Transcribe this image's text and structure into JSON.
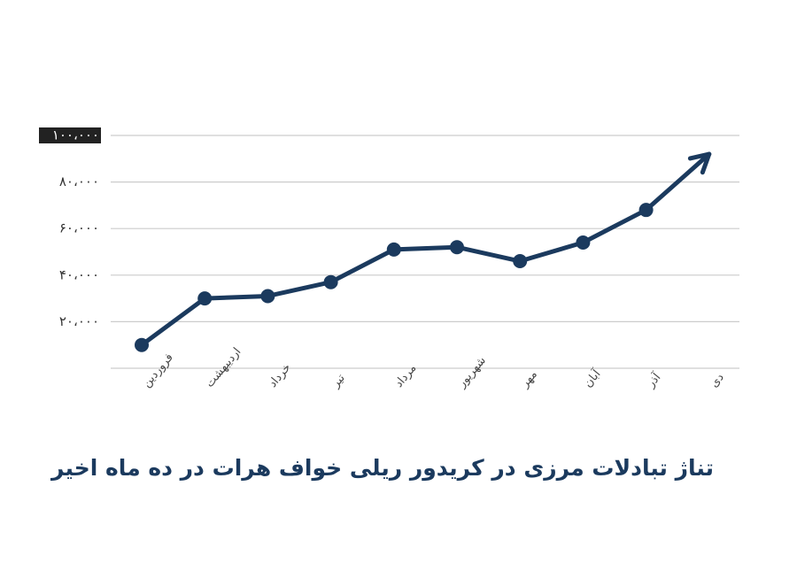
{
  "chart_data": {
    "type": "line",
    "title": "تناژ تبادلات مرزی در کریدور ریلی خواف هرات در ده ماه اخیر",
    "categories": [
      "فروردین",
      "اردیبهشت",
      "خرداد",
      "تیر",
      "مرداد",
      "شهریور",
      "مهر",
      "آبان",
      "آذر",
      "دی"
    ],
    "values": [
      10000,
      30000,
      31000,
      37000,
      51000,
      52000,
      46000,
      54000,
      68000,
      92000
    ],
    "color": "#1b3a5e",
    "ylim": [
      0,
      100000
    ],
    "yticks": [
      {
        "value": 20000,
        "label": "۲۰،۰۰۰"
      },
      {
        "value": 40000,
        "label": "۴۰،۰۰۰"
      },
      {
        "value": 60000,
        "label": "۶۰،۰۰۰"
      },
      {
        "value": 80000,
        "label": "۸۰،۰۰۰"
      },
      {
        "value": 100000,
        "label": "۱۰۰،۰۰۰"
      }
    ],
    "grid": true
  }
}
